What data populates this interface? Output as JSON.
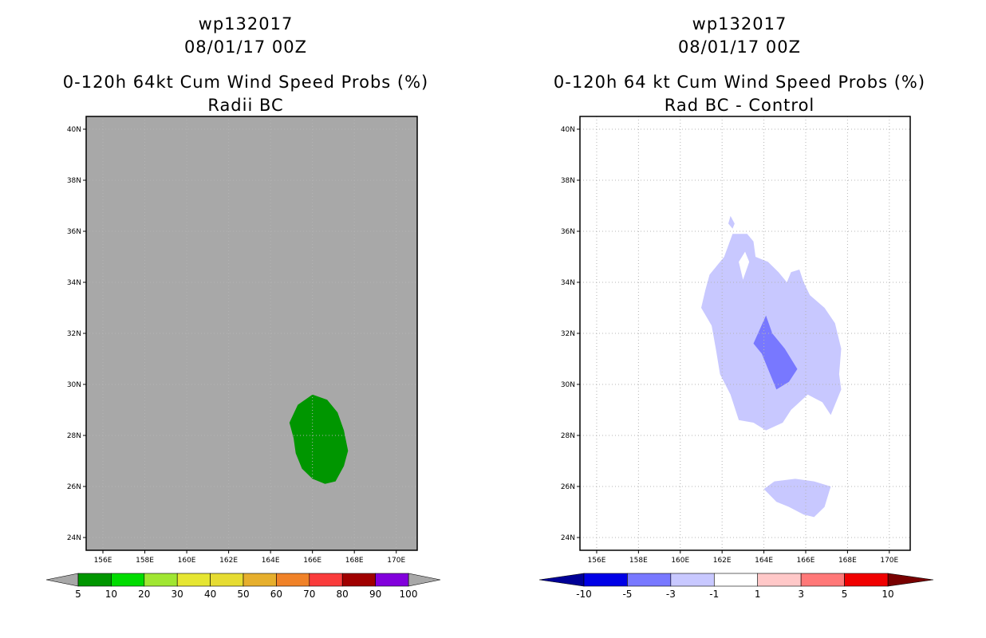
{
  "chart_data": [
    {
      "type": "contour-map",
      "storm_id": "wp132017",
      "date": "08/01/17 00Z",
      "title": "0-120h 64kt Cum Wind Speed Probs (%)",
      "subtitle": "Radii BC",
      "lon_ticks": [
        "156E",
        "158E",
        "160E",
        "162E",
        "164E",
        "166E",
        "168E",
        "170E"
      ],
      "lat_ticks": [
        "40N",
        "38N",
        "36N",
        "34N",
        "32N",
        "30N",
        "28N",
        "26N",
        "24N"
      ],
      "xlim": [
        155.2,
        171.0
      ],
      "ylim": [
        23.5,
        40.5
      ],
      "background_color": "#a8a8a8",
      "regions": [
        {
          "level": "5-10",
          "color": "#009600",
          "polygon": [
            [
              164.9,
              28.5
            ],
            [
              165.3,
              29.2
            ],
            [
              166.0,
              29.6
            ],
            [
              166.7,
              29.4
            ],
            [
              167.2,
              28.9
            ],
            [
              167.5,
              28.2
            ],
            [
              167.7,
              27.4
            ],
            [
              167.5,
              26.8
            ],
            [
              167.1,
              26.2
            ],
            [
              166.6,
              26.1
            ],
            [
              166.0,
              26.3
            ],
            [
              165.5,
              26.7
            ],
            [
              165.2,
              27.3
            ],
            [
              165.1,
              27.9
            ],
            [
              164.9,
              28.5
            ]
          ]
        }
      ],
      "colorbar": {
        "labels": [
          "5",
          "10",
          "20",
          "30",
          "40",
          "50",
          "60",
          "70",
          "80",
          "90",
          "100"
        ],
        "colors": [
          "#009600",
          "#00dc00",
          "#a0e632",
          "#e6e632",
          "#e6dc32",
          "#e6af2d",
          "#f08228",
          "#fa3c3c",
          "#a00000",
          "#8200dc"
        ]
      }
    },
    {
      "type": "contour-map",
      "storm_id": "wp132017",
      "date": "08/01/17 00Z",
      "title": "0-120h 64 kt Cum Wind Speed Probs (%)",
      "subtitle": "Rad BC - Control",
      "lon_ticks": [
        "156E",
        "158E",
        "160E",
        "162E",
        "164E",
        "166E",
        "168E",
        "170E"
      ],
      "lat_ticks": [
        "40N",
        "38N",
        "36N",
        "34N",
        "32N",
        "30N",
        "28N",
        "26N",
        "24N"
      ],
      "xlim": [
        155.2,
        171.0
      ],
      "ylim": [
        23.5,
        40.5
      ],
      "background_color": "#ffffff",
      "regions": [
        {
          "level": "-3 to -1",
          "color": "#c8c8ff",
          "polygon": [
            [
              162.5,
              35.9
            ],
            [
              163.2,
              35.9
            ],
            [
              163.5,
              35.6
            ],
            [
              163.6,
              35.0
            ],
            [
              164.2,
              34.8
            ],
            [
              164.7,
              34.4
            ],
            [
              165.1,
              34.0
            ],
            [
              165.3,
              34.4
            ],
            [
              165.7,
              34.5
            ],
            [
              165.9,
              34.0
            ],
            [
              166.2,
              33.5
            ],
            [
              166.9,
              33.0
            ],
            [
              167.4,
              32.4
            ],
            [
              167.7,
              31.4
            ],
            [
              167.6,
              30.4
            ],
            [
              167.7,
              29.8
            ],
            [
              167.2,
              28.8
            ],
            [
              166.8,
              29.3
            ],
            [
              166.1,
              29.6
            ],
            [
              165.3,
              29.0
            ],
            [
              164.9,
              28.5
            ],
            [
              164.1,
              28.2
            ],
            [
              163.5,
              28.5
            ],
            [
              162.8,
              28.6
            ],
            [
              162.4,
              29.6
            ],
            [
              161.9,
              30.4
            ],
            [
              161.7,
              31.4
            ],
            [
              161.5,
              32.3
            ],
            [
              161.0,
              33.0
            ],
            [
              161.2,
              33.7
            ],
            [
              161.4,
              34.3
            ],
            [
              162.1,
              35.0
            ],
            [
              162.5,
              35.9
            ]
          ],
          "holes": [
            [
              [
                162.8,
                34.8
              ],
              [
                163.1,
                35.2
              ],
              [
                163.3,
                34.8
              ],
              [
                163.0,
                34.1
              ],
              [
                162.8,
                34.8
              ]
            ]
          ]
        },
        {
          "level": "-3 to -1",
          "color": "#c8c8ff",
          "polygon": [
            [
              162.4,
              36.6
            ],
            [
              162.6,
              36.3
            ],
            [
              162.5,
              36.1
            ],
            [
              162.3,
              36.3
            ],
            [
              162.4,
              36.6
            ]
          ]
        },
        {
          "level": "-3 to -1",
          "color": "#c8c8ff",
          "polygon": [
            [
              164.0,
              25.9
            ],
            [
              164.5,
              26.2
            ],
            [
              165.5,
              26.3
            ],
            [
              166.4,
              26.2
            ],
            [
              167.2,
              26.0
            ],
            [
              166.9,
              25.2
            ],
            [
              166.4,
              24.8
            ],
            [
              165.9,
              24.9
            ],
            [
              165.2,
              25.2
            ],
            [
              164.6,
              25.4
            ],
            [
              164.0,
              25.9
            ]
          ]
        },
        {
          "level": "-5 to -3",
          "color": "#7878ff",
          "polygon": [
            [
              164.1,
              32.7
            ],
            [
              164.4,
              32.0
            ],
            [
              165.0,
              31.4
            ],
            [
              165.6,
              30.6
            ],
            [
              165.2,
              30.1
            ],
            [
              164.6,
              29.8
            ],
            [
              164.2,
              30.6
            ],
            [
              163.9,
              31.2
            ],
            [
              163.5,
              31.6
            ],
            [
              164.1,
              32.7
            ]
          ]
        }
      ],
      "colorbar": {
        "labels": [
          "-10",
          "-5",
          "-3",
          "-1",
          "1",
          "3",
          "5",
          "10"
        ],
        "colors": [
          "#0000e6",
          "#7878ff",
          "#c8c8ff",
          "#ffffff",
          "#ffc8c8",
          "#ff7878",
          "#f00000"
        ],
        "low_color": "#000096",
        "high_color": "#780000"
      }
    }
  ]
}
